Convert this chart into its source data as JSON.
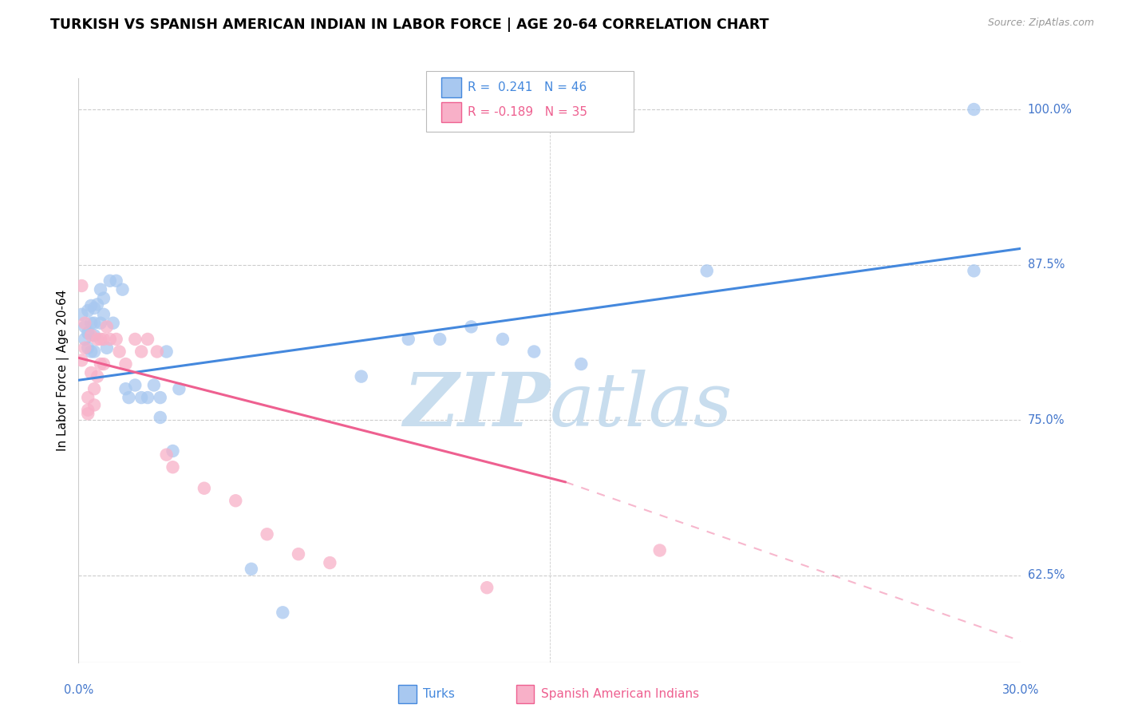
{
  "title": "TURKISH VS SPANISH AMERICAN INDIAN IN LABOR FORCE | AGE 20-64 CORRELATION CHART",
  "source": "Source: ZipAtlas.com",
  "ylabel": "In Labor Force | Age 20-64",
  "x_min": 0.0,
  "x_max": 0.3,
  "y_min": 0.555,
  "y_max": 1.025,
  "y_ticks": [
    0.625,
    0.75,
    0.875,
    1.0
  ],
  "y_tick_labels": [
    "62.5%",
    "75.0%",
    "87.5%",
    "100.0%"
  ],
  "x_tick_labels_left": "0.0%",
  "x_tick_labels_right": "30.0%",
  "turks_R": "0.241",
  "turks_N": "46",
  "spanish_R": "-0.189",
  "spanish_N": "35",
  "turks_color": "#A8C8F0",
  "turks_line_color": "#4488DD",
  "spanish_color": "#F8B0C8",
  "spanish_line_color": "#EE6090",
  "turks_x": [
    0.001,
    0.002,
    0.002,
    0.003,
    0.003,
    0.003,
    0.004,
    0.004,
    0.004,
    0.005,
    0.005,
    0.005,
    0.005,
    0.006,
    0.007,
    0.007,
    0.008,
    0.008,
    0.009,
    0.01,
    0.011,
    0.012,
    0.014,
    0.015,
    0.016,
    0.018,
    0.02,
    0.022,
    0.024,
    0.026,
    0.026,
    0.028,
    0.03,
    0.032,
    0.055,
    0.065,
    0.09,
    0.105,
    0.115,
    0.125,
    0.135,
    0.145,
    0.16,
    0.2,
    0.285,
    0.285
  ],
  "turks_y": [
    0.835,
    0.825,
    0.815,
    0.838,
    0.82,
    0.808,
    0.842,
    0.828,
    0.805,
    0.84,
    0.828,
    0.818,
    0.805,
    0.843,
    0.855,
    0.828,
    0.848,
    0.835,
    0.808,
    0.862,
    0.828,
    0.862,
    0.855,
    0.775,
    0.768,
    0.778,
    0.768,
    0.768,
    0.778,
    0.768,
    0.752,
    0.805,
    0.725,
    0.775,
    0.63,
    0.595,
    0.785,
    0.815,
    0.815,
    0.825,
    0.815,
    0.805,
    0.795,
    0.87,
    0.87,
    1.0
  ],
  "spanish_x": [
    0.001,
    0.001,
    0.002,
    0.002,
    0.003,
    0.003,
    0.003,
    0.004,
    0.004,
    0.005,
    0.005,
    0.006,
    0.006,
    0.007,
    0.007,
    0.008,
    0.008,
    0.009,
    0.01,
    0.012,
    0.013,
    0.015,
    0.018,
    0.02,
    0.022,
    0.025,
    0.028,
    0.03,
    0.04,
    0.05,
    0.06,
    0.07,
    0.08,
    0.13,
    0.185
  ],
  "spanish_y": [
    0.858,
    0.798,
    0.828,
    0.808,
    0.755,
    0.768,
    0.758,
    0.818,
    0.788,
    0.775,
    0.762,
    0.815,
    0.785,
    0.815,
    0.795,
    0.815,
    0.795,
    0.825,
    0.815,
    0.815,
    0.805,
    0.795,
    0.815,
    0.805,
    0.815,
    0.805,
    0.722,
    0.712,
    0.695,
    0.685,
    0.658,
    0.642,
    0.635,
    0.615,
    0.645
  ],
  "turks_trend": [
    0.0,
    0.3,
    0.782,
    0.888
  ],
  "spanish_trend_solid": [
    0.0,
    0.155,
    0.8,
    0.7
  ],
  "spanish_trend_dash": [
    0.155,
    0.3,
    0.7,
    0.572
  ],
  "watermark_zip": "ZIP",
  "watermark_atlas": "atlas",
  "watermark_color": "#C8DDEE",
  "grid_color": "#CCCCCC",
  "tick_color": "#4477CC",
  "bg_color": "#FFFFFF",
  "title_fontsize": 12.5,
  "source_fontsize": 9,
  "ylabel_fontsize": 11,
  "tick_fontsize": 10.5,
  "legend_fontsize": 11
}
